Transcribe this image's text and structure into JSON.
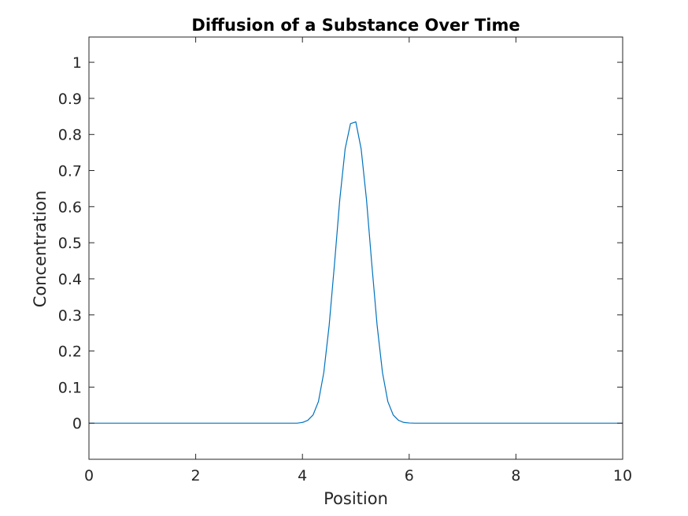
{
  "chart_data": {
    "type": "line",
    "title": "Diffusion of a Substance Over Time",
    "xlabel": "Position",
    "ylabel": "Concentration",
    "xlim": [
      0,
      10
    ],
    "ylim": [
      -0.1,
      1.07
    ],
    "xticks": [
      0,
      2,
      4,
      6,
      8,
      10
    ],
    "xtick_labels": [
      "0",
      "2",
      "4",
      "6",
      "8",
      "10"
    ],
    "yticks": [
      0,
      0.1,
      0.2,
      0.3,
      0.4,
      0.5,
      0.6,
      0.7,
      0.8,
      0.9,
      1
    ],
    "ytick_labels": [
      "0",
      "0.1",
      "0.2",
      "0.3",
      "0.4",
      "0.5",
      "0.6",
      "0.7",
      "0.8",
      "0.9",
      "1"
    ],
    "grid": false,
    "series_color": "#0072bd",
    "series": [
      {
        "x": [
          0,
          1,
          2,
          3,
          3.9,
          4.0,
          4.1,
          4.2,
          4.3,
          4.4,
          4.5,
          4.6,
          4.7,
          4.8,
          4.9,
          5.0,
          5.1,
          5.2,
          5.3,
          5.4,
          5.5,
          5.6,
          5.7,
          5.8,
          5.9,
          6.0,
          6.1,
          7,
          8,
          9,
          10
        ],
        "y": [
          0,
          0,
          0,
          0,
          0,
          0.002,
          0.008,
          0.023,
          0.06,
          0.14,
          0.27,
          0.44,
          0.62,
          0.76,
          0.83,
          0.835,
          0.76,
          0.62,
          0.44,
          0.27,
          0.14,
          0.06,
          0.023,
          0.008,
          0.002,
          0.0005,
          0,
          0,
          0,
          0,
          0
        ]
      }
    ]
  }
}
